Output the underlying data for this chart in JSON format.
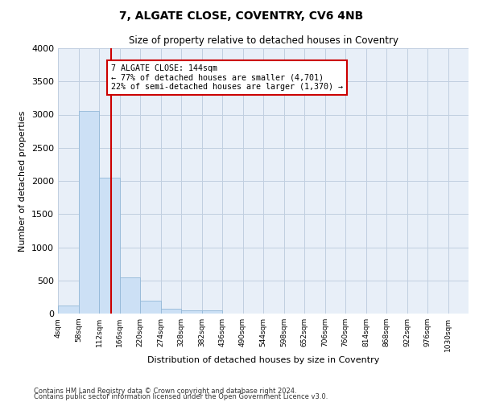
{
  "title": "7, ALGATE CLOSE, COVENTRY, CV6 4NB",
  "subtitle": "Size of property relative to detached houses in Coventry",
  "xlabel": "Distribution of detached houses by size in Coventry",
  "ylabel": "Number of detached properties",
  "footer1": "Contains HM Land Registry data © Crown copyright and database right 2024.",
  "footer2": "Contains public sector information licensed under the Open Government Licence v3.0.",
  "bin_edges": [
    4,
    58,
    112,
    166,
    220,
    274,
    328,
    382,
    436,
    490,
    544,
    598,
    652,
    706,
    760,
    814,
    868,
    922,
    976,
    1030,
    1084
  ],
  "bar_heights": [
    120,
    3050,
    2050,
    550,
    200,
    75,
    50,
    45,
    0,
    0,
    0,
    0,
    0,
    0,
    0,
    0,
    0,
    0,
    0,
    0
  ],
  "bar_color": "#cce0f5",
  "bar_edge_color": "#93b8d8",
  "property_size": 144,
  "vline_color": "#cc0000",
  "annotation_line1": "7 ALGATE CLOSE: 144sqm",
  "annotation_line2": "← 77% of detached houses are smaller (4,701)",
  "annotation_line3": "22% of semi-detached houses are larger (1,370) →",
  "annotation_box_color": "#ffffff",
  "annotation_box_edge": "#cc0000",
  "ylim": [
    0,
    4000
  ],
  "yticks": [
    0,
    500,
    1000,
    1500,
    2000,
    2500,
    3000,
    3500,
    4000
  ],
  "grid_color": "#c0cfe0",
  "bg_color": "#e8eff8"
}
